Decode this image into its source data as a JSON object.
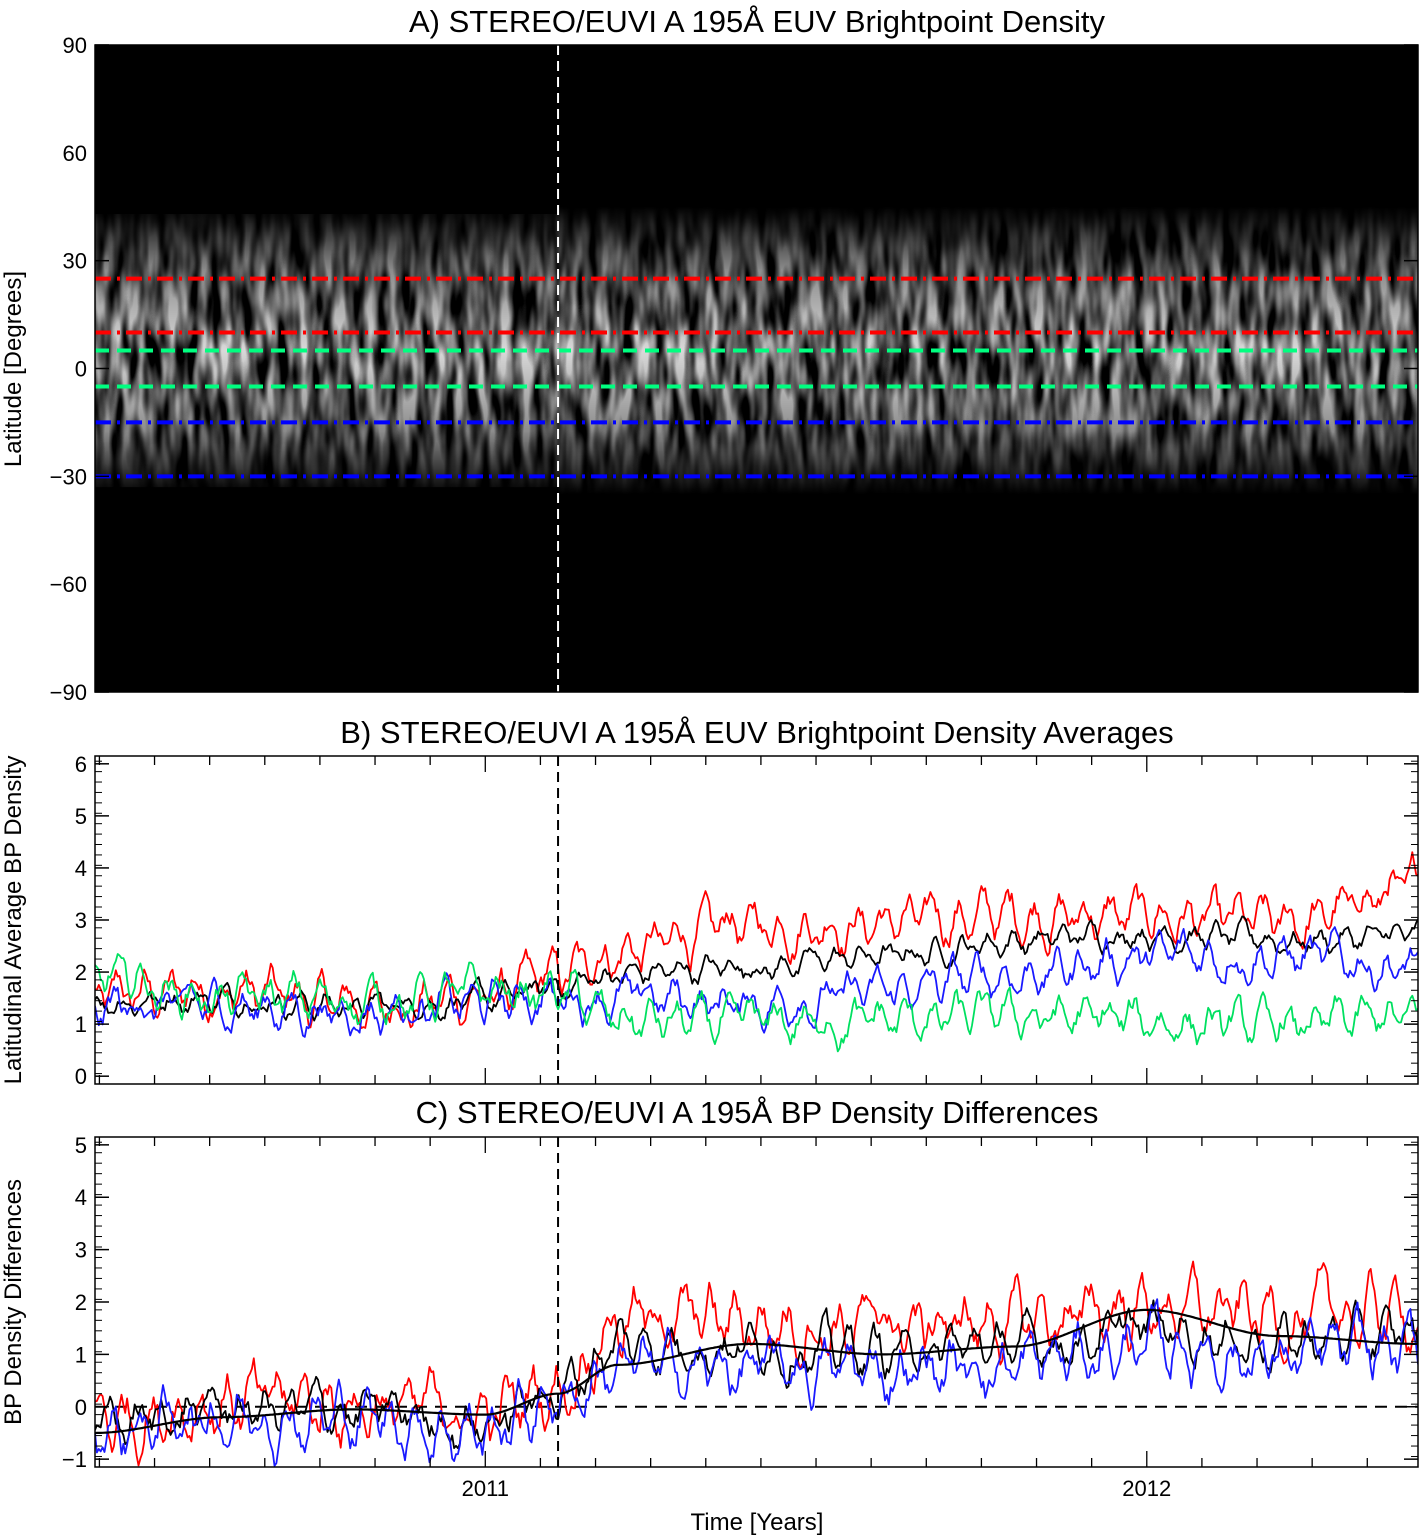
{
  "figure": {
    "xlabel": "Time [Years]",
    "xticks": [
      "2011",
      "2012"
    ]
  },
  "chart_data": [
    {
      "type": "heatmap",
      "title": "A) STEREO/EUVI A 195Å EUV Brightpoint Density",
      "ylabel": "Latitude [Degrees]",
      "yticks": [
        "90",
        "60",
        "30",
        "0",
        "−30",
        "−60",
        "−90"
      ],
      "ylim": [
        -90,
        90
      ],
      "xlim": [
        2010.41,
        2012.41
      ],
      "background": "#000000",
      "band_center_latitude": 5,
      "band_halfwidth_before": 38,
      "band_halfwidth_after": 40,
      "event_time": 2011.11,
      "reference_lines": [
        {
          "latitude": 25,
          "color": "#ff0000",
          "style": "dash-dot"
        },
        {
          "latitude": 10,
          "color": "#ff0000",
          "style": "dash-dot"
        },
        {
          "latitude": 5,
          "color": "#00ff80",
          "style": "dashed"
        },
        {
          "latitude": -5,
          "color": "#00ff80",
          "style": "dashed"
        },
        {
          "latitude": -15,
          "color": "#0000ff",
          "style": "dash-dot"
        },
        {
          "latitude": -30,
          "color": "#0000ff",
          "style": "dash-dot"
        }
      ]
    },
    {
      "type": "line",
      "title": "B) STEREO/EUVI A 195Å EUV Brightpoint Density Averages",
      "ylabel": "Latitudinal Average BP Density",
      "yticks": [
        "0",
        "1",
        "2",
        "3",
        "4",
        "5",
        "6"
      ],
      "ylim": [
        -0.15,
        6.15
      ],
      "xlim": [
        2010.41,
        2012.41
      ],
      "event_time": 2011.11,
      "anchor_x": [
        2010.41,
        2010.6,
        2010.8,
        2011.0,
        2011.11,
        2011.2,
        2011.4,
        2011.6,
        2011.8,
        2012.0,
        2012.2,
        2012.41
      ],
      "series": [
        {
          "color": "#ff0000",
          "anchors": [
            1.5,
            1.65,
            1.35,
            1.5,
            1.9,
            2.4,
            2.9,
            2.95,
            3.1,
            3.05,
            2.9,
            3.6
          ],
          "noise": 0.45
        },
        {
          "color": "#000000",
          "anchors": [
            1.45,
            1.5,
            1.35,
            1.45,
            1.7,
            1.95,
            2.1,
            2.3,
            2.6,
            2.75,
            2.6,
            2.7
          ],
          "noise": 0.25
        },
        {
          "color": "#1a1aff",
          "anchors": [
            1.35,
            1.35,
            1.25,
            1.4,
            1.55,
            1.5,
            1.4,
            1.6,
            1.95,
            2.3,
            2.3,
            2.1
          ],
          "noise": 0.4
        },
        {
          "color": "#00e060",
          "anchors": [
            1.9,
            1.5,
            1.45,
            1.6,
            1.6,
            1.05,
            1.0,
            1.05,
            1.15,
            1.05,
            0.95,
            1.1
          ],
          "noise": 0.4
        }
      ]
    },
    {
      "type": "line",
      "title": "C) STEREO/EUVI A 195Å BP Density Differences",
      "ylabel": "BP Density Differences",
      "yticks": [
        "−1",
        "0",
        "1",
        "2",
        "3",
        "4",
        "5"
      ],
      "ylim": [
        -1.15,
        5.15
      ],
      "xlim": [
        2010.41,
        2012.41
      ],
      "event_time": 2011.11,
      "zero_line": 0,
      "anchor_x": [
        2010.41,
        2010.6,
        2010.8,
        2011.0,
        2011.11,
        2011.2,
        2011.4,
        2011.6,
        2011.8,
        2012.0,
        2012.2,
        2012.41
      ],
      "series": [
        {
          "color": "#ff0000",
          "anchors": [
            -0.25,
            0.1,
            0.05,
            -0.15,
            0.35,
            1.7,
            1.6,
            1.55,
            1.6,
            1.9,
            1.7,
            1.8
          ],
          "noise": 0.6
        },
        {
          "color": "#000000",
          "anchors": [
            -0.35,
            -0.05,
            -0.1,
            -0.3,
            0.3,
            1.2,
            1.15,
            1.05,
            1.15,
            1.5,
            1.25,
            1.35
          ],
          "noise": 0.45
        },
        {
          "color": "#1a1aff",
          "anchors": [
            -0.45,
            -0.15,
            -0.2,
            -0.45,
            0.15,
            0.75,
            0.7,
            0.7,
            0.8,
            1.15,
            0.95,
            1.05
          ],
          "noise": 0.55
        },
        {
          "color": "#000000",
          "smooth": true,
          "anchors": [
            -0.5,
            -0.2,
            -0.05,
            -0.15,
            0.25,
            0.8,
            1.2,
            1.0,
            1.15,
            1.85,
            1.35,
            1.2
          ],
          "noise": 0.0
        }
      ]
    }
  ]
}
